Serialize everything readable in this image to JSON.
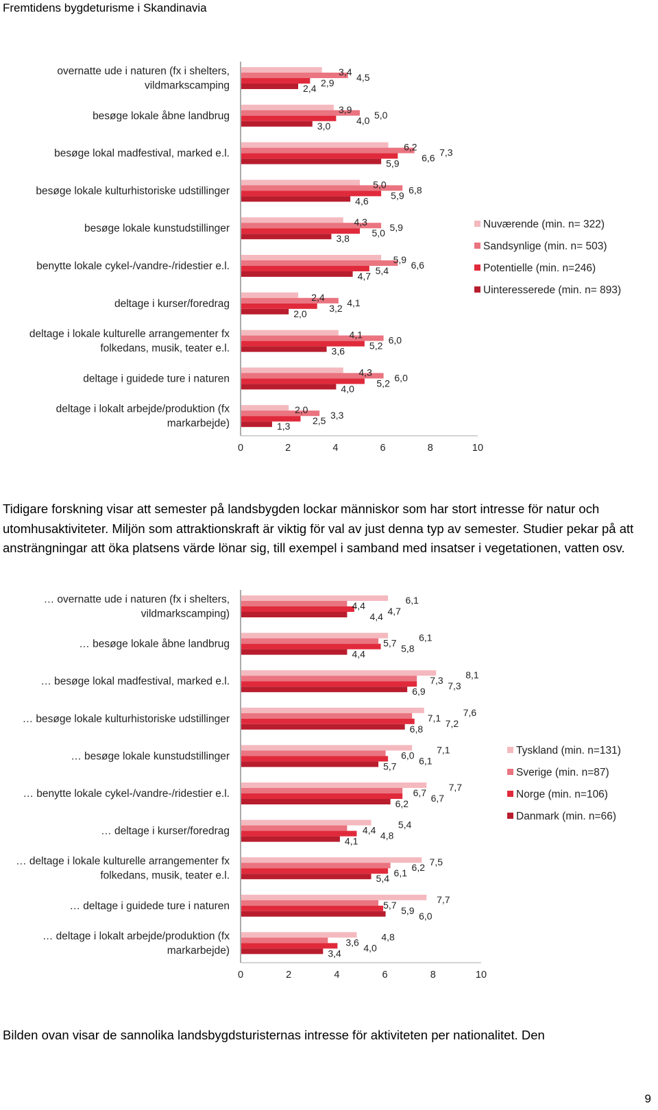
{
  "header": {
    "title": "Fremtidens bygdeturisme i Skandinavia"
  },
  "paragraphs": {
    "p1": "Tidigare forskning visar att semester på landsbygden lockar människor som har stort intresse för natur och utomhusaktiviteter. Miljön som attraktionskraft är viktig för val av just denna typ av semester. Studier pekar på att ansträngningar att öka platsens värde lönar sig, till exempel i samband med insatser i vegetationen, vatten osv.",
    "p2": "Bilden ovan visar de sannolika landsbygdsturisternas intresse för aktiviteten per nationalitet. Den"
  },
  "page_number": "9",
  "chart_data": [
    {
      "type": "bar",
      "orientation": "horizontal",
      "categories": [
        [
          "overnatte ude i naturen (fx i shelters,",
          "vildmarkscamping"
        ],
        [
          "besøge lokale åbne landbrug"
        ],
        [
          "besøge lokal madfestival, marked e.l."
        ],
        [
          "besøge lokale kulturhistoriske udstillinger"
        ],
        [
          "besøge lokale kunstudstillinger"
        ],
        [
          "benytte lokale cykel-/vandre-/ridestier e.l."
        ],
        [
          "deltage i kurser/foredrag"
        ],
        [
          "deltage i lokale kulturelle arrangementer fx",
          "folkedans, musik, teater e.l."
        ],
        [
          "deltage i guidede ture i naturen"
        ],
        [
          "deltage i lokalt arbejde/produktion (fx",
          "markarbejde)"
        ]
      ],
      "series": [
        {
          "name": "Nuværende (min. n= 322)",
          "color": "#f4b9be",
          "values": [
            3.4,
            3.9,
            6.2,
            5.0,
            4.3,
            5.9,
            2.4,
            4.1,
            4.3,
            2.0
          ]
        },
        {
          "name": "Sandsynlige (min. n= 503)",
          "color": "#ea7480",
          "values": [
            4.5,
            5.0,
            7.3,
            6.8,
            5.9,
            6.6,
            4.1,
            6.0,
            6.0,
            3.3
          ]
        },
        {
          "name": "Potentielle (min. n=246)",
          "color": "#e02a3b",
          "values": [
            2.9,
            4.0,
            6.6,
            5.9,
            5.0,
            5.4,
            3.2,
            5.2,
            5.2,
            2.5
          ]
        },
        {
          "name": "Uinteresserede (min. n= 893)",
          "color": "#b81d2e",
          "values": [
            2.4,
            3.0,
            5.9,
            4.6,
            3.8,
            4.7,
            2.0,
            3.6,
            4.0,
            1.3
          ]
        }
      ],
      "value_labels": [
        [
          "3,4",
          "3,9",
          "6,2",
          "5,0",
          "4,3",
          "5,9",
          "2,4",
          "4,1",
          "4,3",
          "2,0"
        ],
        [
          "4,5",
          "5,0",
          "7,3",
          "6,8",
          "5,9",
          "6,6",
          "4,1",
          "6,0",
          "6,0",
          "3,3"
        ],
        [
          "2,9",
          "4,0",
          "6,6",
          "5,9",
          "5,0",
          "5,4",
          "3,2",
          "5,2",
          "5,2",
          "2,5"
        ],
        [
          "2,4",
          "3,0",
          "5,9",
          "4,6",
          "3,8",
          "4,7",
          "2,0",
          "3,6",
          "4,0",
          "1,3"
        ]
      ],
      "xlim": [
        0,
        10
      ],
      "xticks": [
        "0",
        "2",
        "4",
        "6",
        "8",
        "10"
      ],
      "legend_position": "right"
    },
    {
      "type": "bar",
      "orientation": "horizontal",
      "categories": [
        [
          "… overnatte ude i naturen (fx i shelters,",
          "vildmarkscamping)"
        ],
        [
          "… besøge lokale åbne landbrug"
        ],
        [
          "… besøge lokal madfestival, marked e.l."
        ],
        [
          "… besøge lokale kulturhistoriske udstillinger"
        ],
        [
          "… besøge lokale kunstudstillinger"
        ],
        [
          "… benytte lokale cykel-/vandre-/ridestier e.l."
        ],
        [
          "… deltage i kurser/foredrag"
        ],
        [
          "… deltage i lokale kulturelle arrangementer fx",
          "folkedans, musik, teater e.l."
        ],
        [
          "… deltage i guidede ture i naturen"
        ],
        [
          "… deltage i lokalt arbejde/produktion (fx",
          "markarbejde)"
        ]
      ],
      "series": [
        {
          "name": "Tyskland (min. n=131)",
          "color": "#f4b9be",
          "values": [
            6.1,
            6.1,
            8.1,
            7.6,
            7.1,
            7.7,
            5.4,
            7.5,
            7.7,
            4.8
          ]
        },
        {
          "name": "Sverige (min. n=87)",
          "color": "#ea7480",
          "values": [
            4.4,
            5.7,
            7.3,
            7.1,
            6.0,
            6.7,
            4.4,
            6.2,
            5.7,
            3.6
          ]
        },
        {
          "name": "Norge (min. n=106)",
          "color": "#e02a3b",
          "values": [
            4.7,
            5.8,
            7.3,
            7.2,
            6.1,
            6.7,
            4.8,
            6.1,
            5.9,
            4.0
          ]
        },
        {
          "name": "Danmark (min. n=66)",
          "color": "#b81d2e",
          "values": [
            4.4,
            4.4,
            6.9,
            6.8,
            5.7,
            6.2,
            4.1,
            5.4,
            6.0,
            3.4
          ]
        }
      ],
      "value_labels": [
        [
          "6,1",
          "6,1",
          "8,1",
          "7,6",
          "7,1",
          "7,7",
          "5,4",
          "7,5",
          "7,7",
          "4,8"
        ],
        [
          "4,4",
          "5,7",
          "7,3",
          "7,1",
          "6,0",
          "6,7",
          "4,4",
          "6,2",
          "5,7",
          "3,6"
        ],
        [
          "4,7",
          "5,8",
          "7,3",
          "7,2",
          "6,1",
          "6,7",
          "4,8",
          "6,1",
          "5,9",
          "4,0"
        ],
        [
          "4,4",
          "4,4",
          "6,9",
          "6,8",
          "5,7",
          "6,2",
          "4,1",
          "5,4",
          "6,0",
          "3,4"
        ]
      ],
      "xlim": [
        0,
        10
      ],
      "xticks": [
        "0",
        "2",
        "4",
        "6",
        "8",
        "10"
      ],
      "legend_position": "right"
    }
  ]
}
